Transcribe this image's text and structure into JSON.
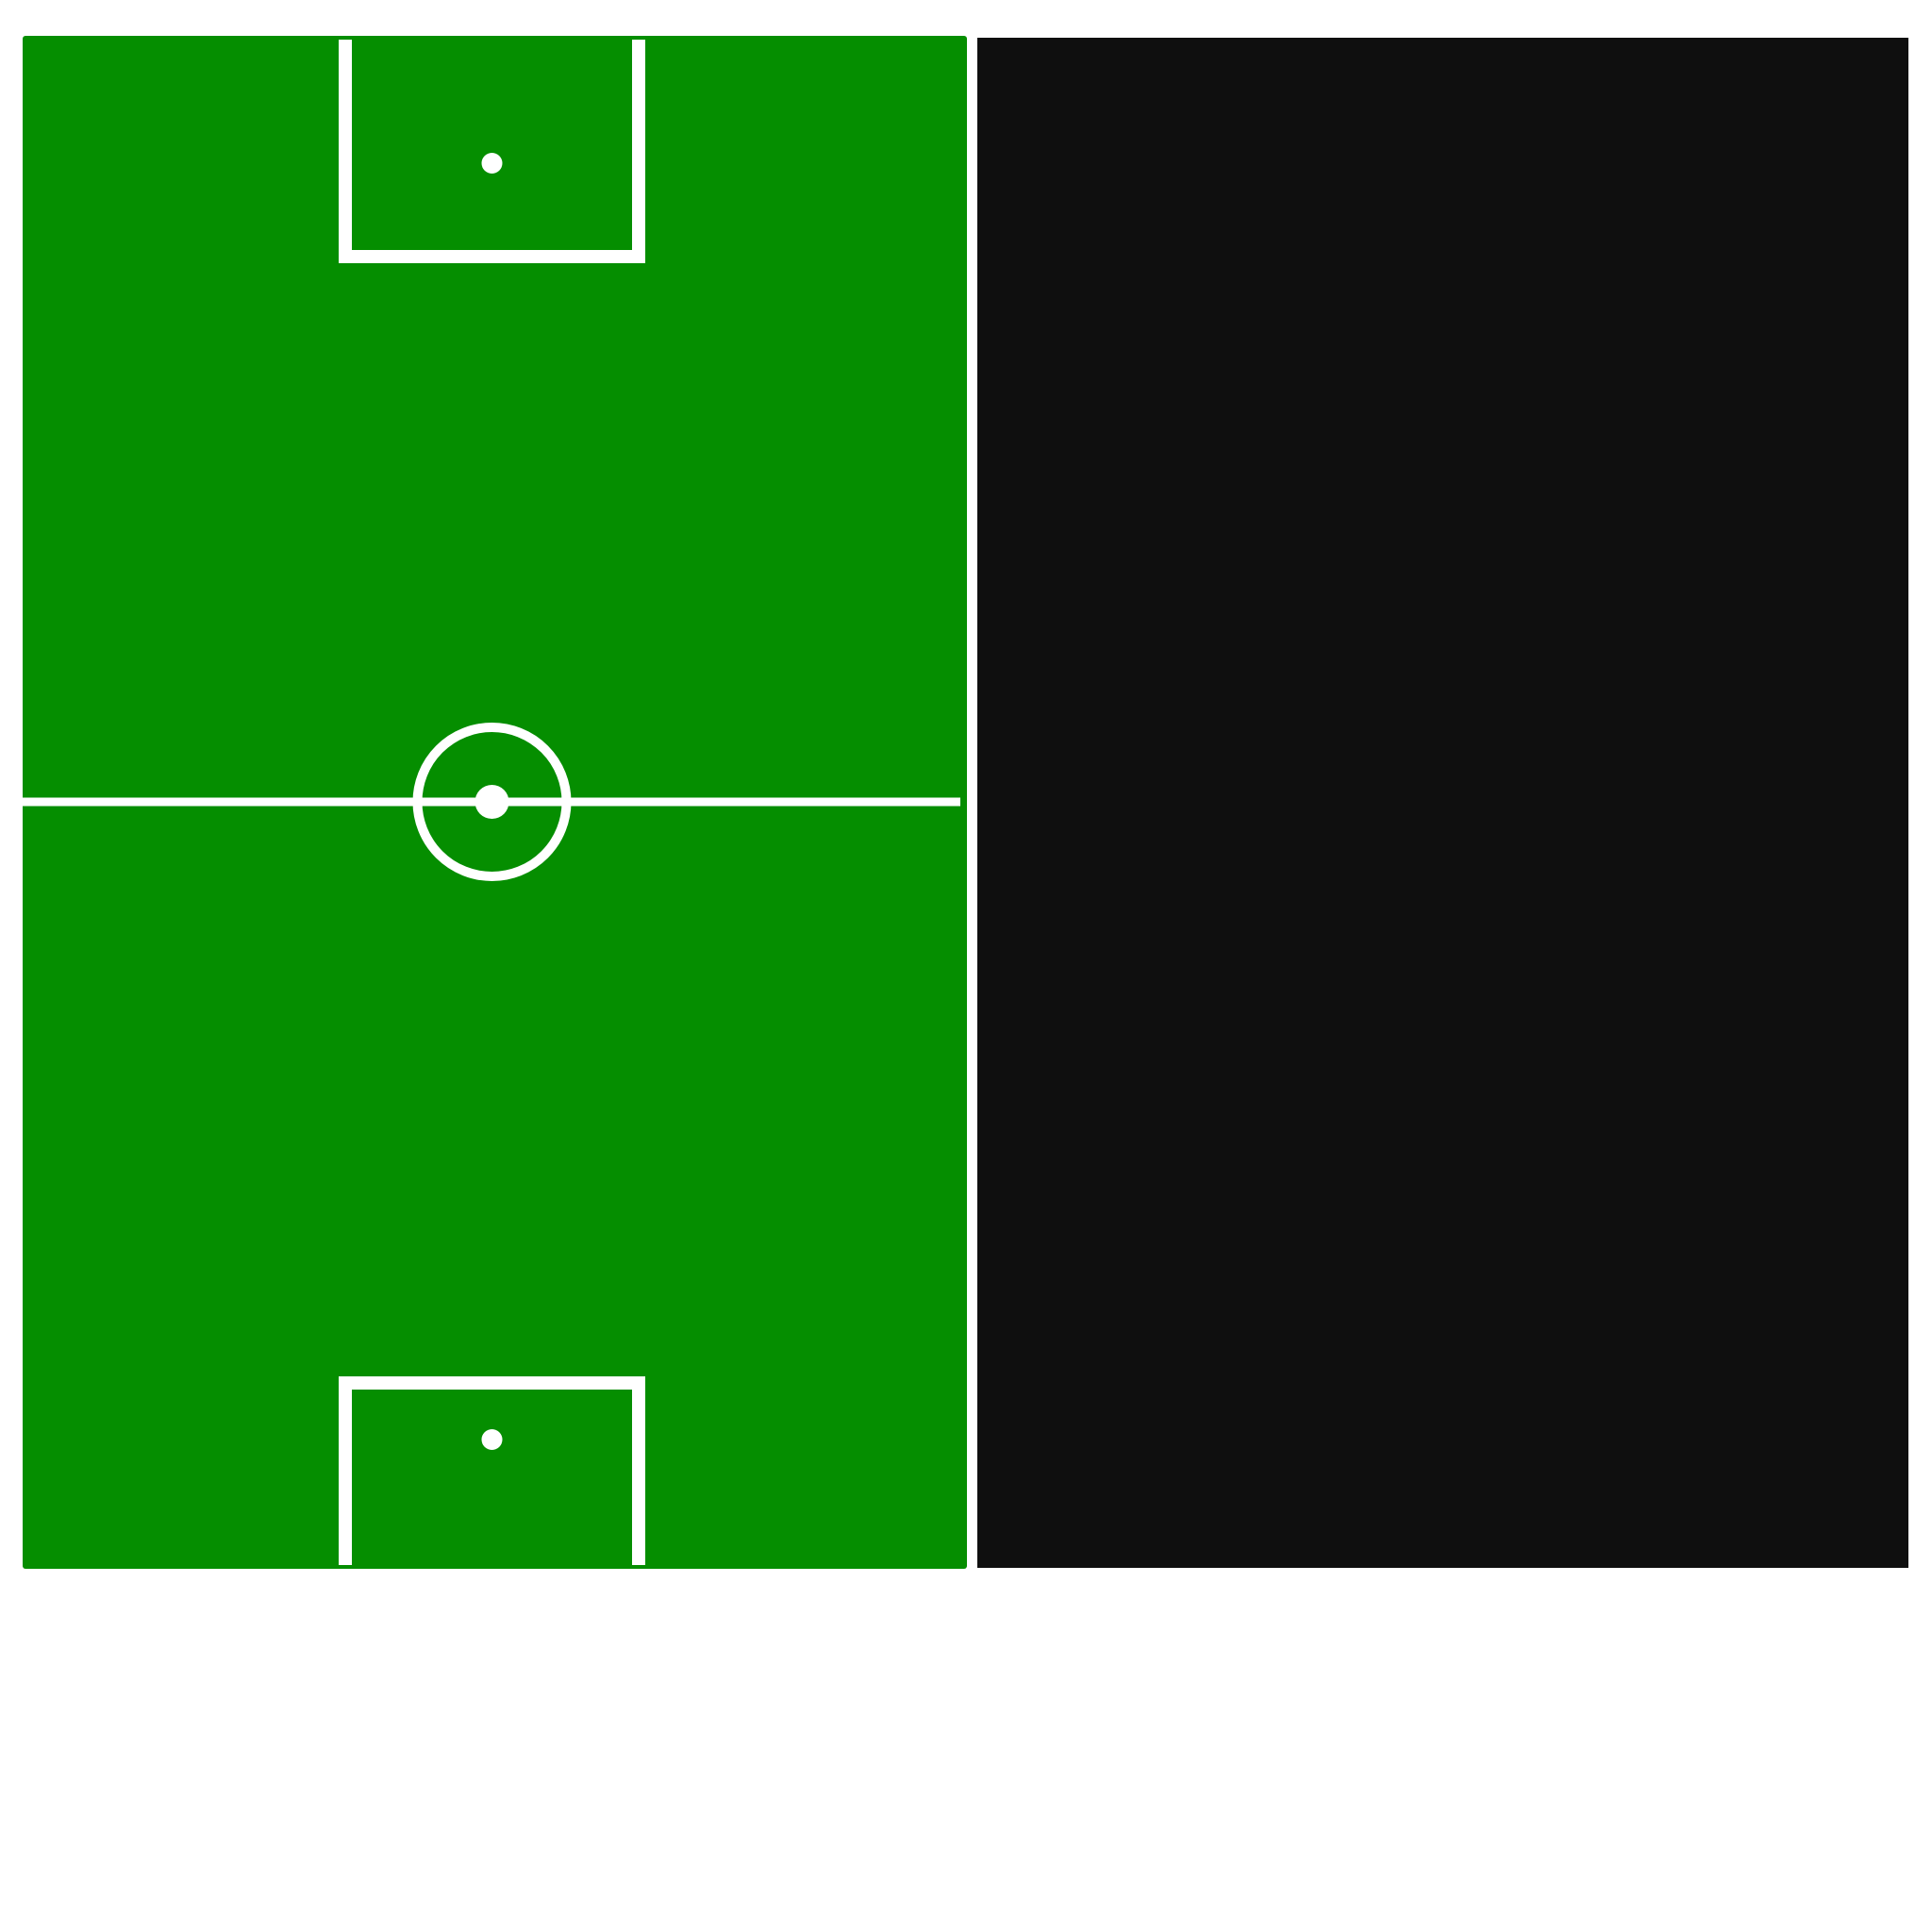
{
  "colors": {
    "page_background": "#ffffff",
    "pitch_grass": "#058e00",
    "pitch_lines": "#ffffff",
    "panel_background": "#0f0f0f"
  },
  "icons": {
    "center_spot": "center-spot-icon",
    "penalty_spot_top": "penalty-spot-top-icon",
    "penalty_spot_bottom": "penalty-spot-bottom-icon"
  }
}
